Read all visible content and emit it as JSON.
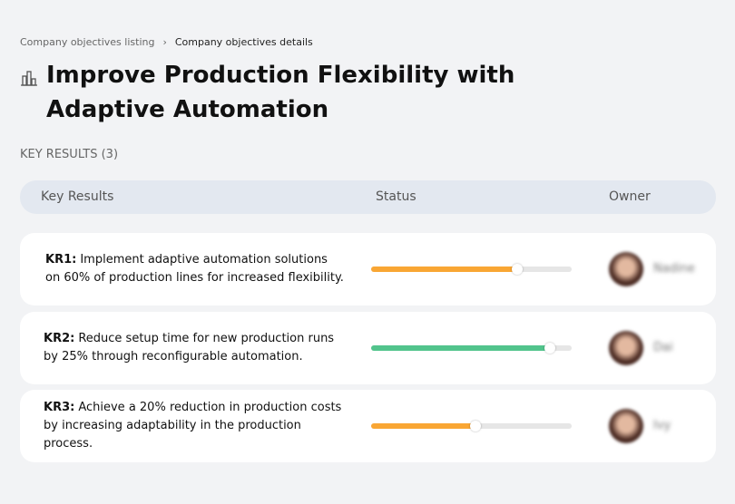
{
  "breadcrumb": {
    "items": [
      "Company objectives listing",
      "Company objectives details"
    ]
  },
  "header": {
    "title": "Improve Production Flexibility with Adaptive Automation"
  },
  "section": {
    "title": "KEY RESULTS (3)"
  },
  "table": {
    "columns": [
      "Key Results",
      "Status",
      "Owner"
    ],
    "rows": [
      {
        "label": "KR1:",
        "text": "Implement adaptive automation solutions on 60% of production lines for increased flexibility.",
        "progress": 73,
        "color": "#f9a634",
        "owner": "Nadine"
      },
      {
        "label": "KR2:",
        "text": "Reduce setup time for new production runs by 25% through reconfigurable automation.",
        "progress": 89,
        "color": "#52c48c",
        "owner": "Dai"
      },
      {
        "label": "KR3:",
        "text": "Achieve a 20% reduction in production costs by increasing adaptability in the production process.",
        "progress": 52,
        "color": "#f9a634",
        "owner": "Ivy"
      }
    ]
  }
}
